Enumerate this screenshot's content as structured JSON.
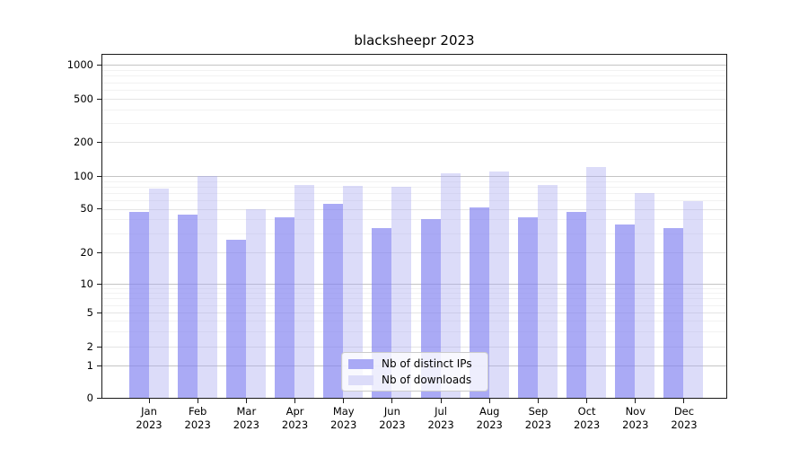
{
  "chart_data": {
    "type": "bar",
    "title": "blacksheepr 2023",
    "categories": [
      "Jan",
      "Feb",
      "Mar",
      "Apr",
      "May",
      "Jun",
      "Jul",
      "Aug",
      "Sep",
      "Oct",
      "Nov",
      "Dec"
    ],
    "year": "2023",
    "series": [
      {
        "name": "Nb of distinct IPs",
        "color": "#a9a9f5",
        "values": [
          47,
          44,
          26,
          42,
          56,
          33,
          40,
          51,
          42,
          47,
          36,
          33
        ]
      },
      {
        "name": "Nb of downloads",
        "color": "#dcdcf9",
        "values": [
          77,
          100,
          50,
          82,
          81,
          79,
          105,
          110,
          83,
          119,
          70,
          59
        ]
      }
    ],
    "yticks": [
      0,
      1,
      2,
      5,
      10,
      20,
      50,
      100,
      200,
      500,
      1000
    ],
    "scale": "symlog",
    "ylim": [
      0,
      1000
    ],
    "grid": true,
    "legend_position": "lower center"
  }
}
